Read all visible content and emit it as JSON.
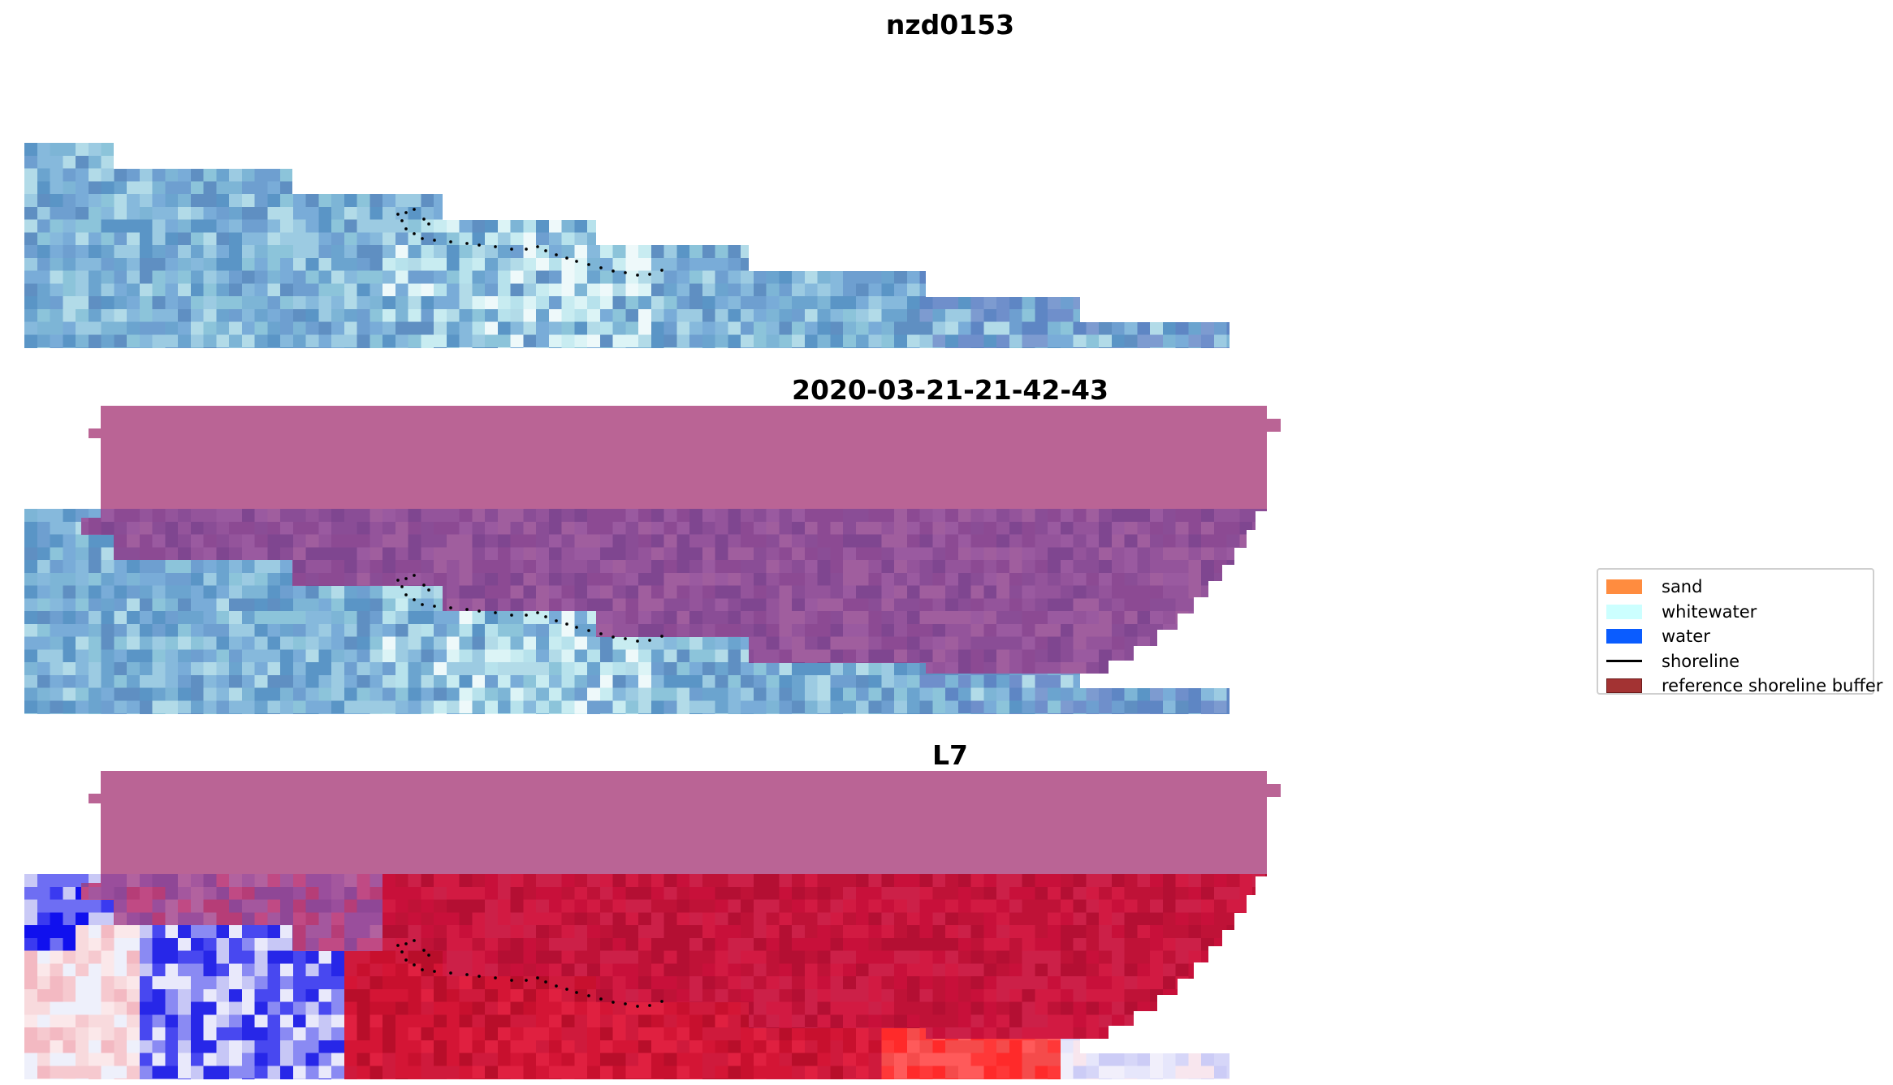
{
  "titles": {
    "top": "nzd0153",
    "middle": "2020-03-21-21-42-43",
    "bottom": "L7"
  },
  "legend": {
    "items": [
      {
        "label": "sand",
        "color": "#ff8c3f",
        "kind": "patch"
      },
      {
        "label": "whitewater",
        "color": "#ccffff",
        "kind": "patch"
      },
      {
        "label": "water",
        "color": "#0a5cff",
        "kind": "patch"
      },
      {
        "label": "shoreline",
        "color": "#000000",
        "kind": "line"
      },
      {
        "label": "reference shoreline buffer",
        "color": "#a33333",
        "kind": "patch"
      }
    ]
  },
  "colors": {
    "reference_buffer_overlay": "#ba6495",
    "rgb_water_tone": "#5b9ac8",
    "index_positive": "#c8102e",
    "index_negative": "#1010ee"
  }
}
